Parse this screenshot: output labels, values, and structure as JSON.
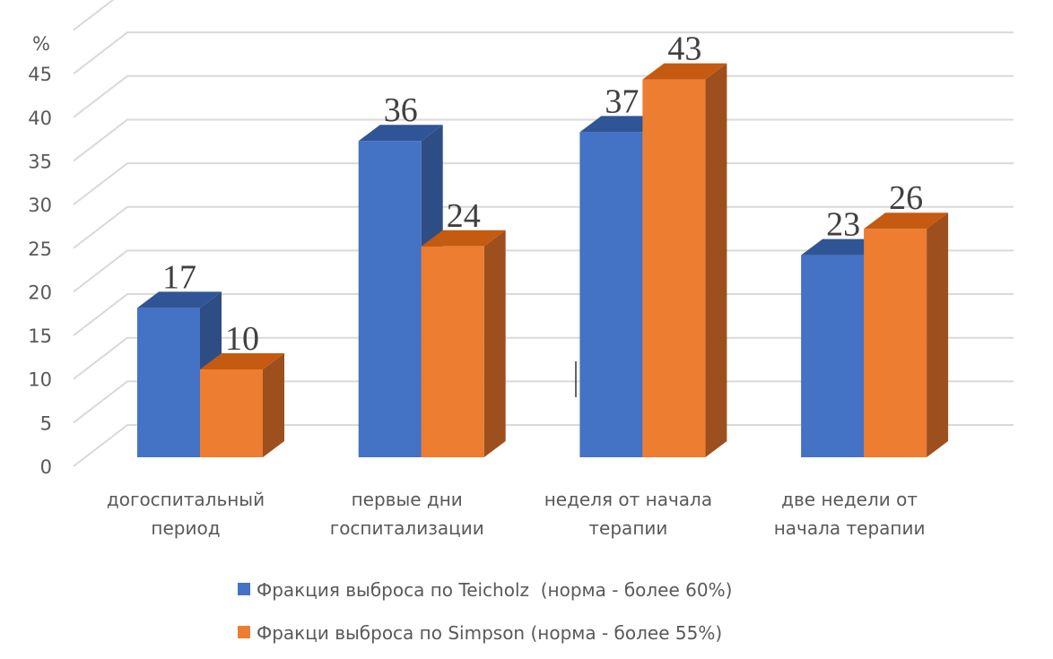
{
  "chart_data": {
    "type": "bar",
    "style": "3d-clustered-column",
    "ylabel": "%",
    "ylim": [
      0,
      45
    ],
    "yticks": [
      0,
      5,
      10,
      15,
      20,
      25,
      30,
      35,
      40,
      45
    ],
    "grid": true,
    "legend_position": "bottom",
    "categories": [
      [
        "догоспитальный",
        "период"
      ],
      [
        "первые дни",
        "госпитализации"
      ],
      [
        "неделя от начала",
        "терапии"
      ],
      [
        "две недели от",
        "начала терапии"
      ]
    ],
    "series": [
      {
        "name": "Фракция выброса по Teicholz  (норма - более 60%)",
        "values": [
          17,
          36,
          37,
          23
        ],
        "color": "#4472C4",
        "top": "#2F5597",
        "side": "#2E4D85"
      },
      {
        "name": "Фракци выброса по Simpson (норма - более 55%)",
        "values": [
          10,
          24,
          43,
          26
        ],
        "color": "#ED7D31",
        "top": "#C55A11",
        "side": "#9E4F1E"
      }
    ]
  }
}
